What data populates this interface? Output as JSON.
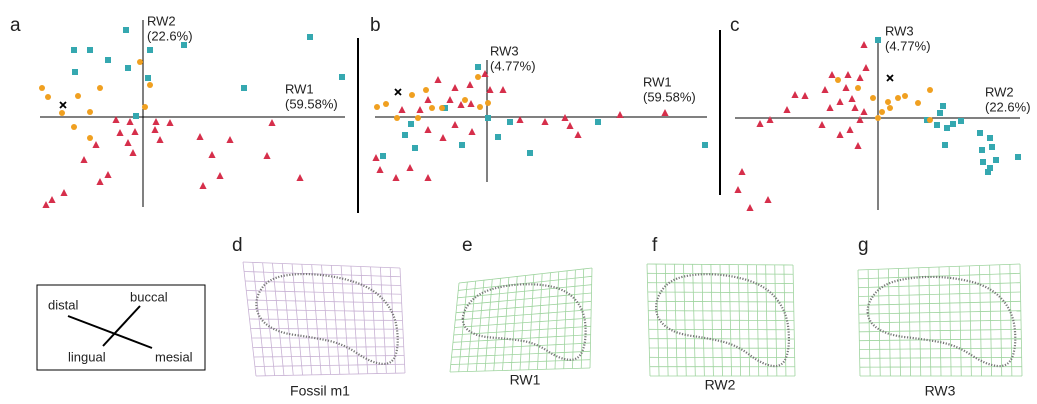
{
  "chart_data": [
    {
      "type": "scatter",
      "panel": "a",
      "x_label": [
        "RW1",
        "(59.58%)"
      ],
      "y_label": [
        "RW2",
        "(22.6%)"
      ],
      "xlim": [
        -103,
        202
      ],
      "ylim": [
        -90,
        97
      ],
      "series": [
        {
          "color": "#35a8b0",
          "marker": "square",
          "x": [
            -17,
            -69,
            -53,
            -35,
            7,
            41,
            -68,
            -15,
            5,
            101,
            167,
            199,
            -7
          ],
          "values": [
            87,
            67,
            67,
            57,
            67,
            72,
            45,
            49,
            39,
            29,
            80,
            40,
            1
          ]
        },
        {
          "color": "#f0a020",
          "marker": "circle",
          "x": [
            -101,
            -95,
            -65,
            -43,
            -81,
            -53,
            2,
            7,
            -69,
            -53,
            -3
          ],
          "values": [
            29,
            20,
            21,
            29,
            4,
            5,
            10,
            32,
            -10,
            -21,
            55
          ]
        },
        {
          "color": "#d62f4b",
          "marker": "triangle",
          "x": [
            -27,
            -13,
            13,
            27,
            -23,
            -15,
            -8,
            -10,
            12,
            17,
            57,
            87,
            129,
            124,
            69,
            77,
            60,
            157,
            -47,
            -59,
            -35,
            -79,
            -97,
            -91,
            -43
          ],
          "values": [
            -3,
            -5,
            -5,
            -6,
            -16,
            -26,
            -15,
            -36,
            -13,
            -23,
            -20,
            -23,
            -6,
            -39,
            -38,
            -59,
            -69,
            -61,
            -28,
            -43,
            -58,
            -76,
            -88,
            -83,
            -65
          ]
        },
        {
          "color": "#000000",
          "marker": "cross",
          "x": [
            -80
          ],
          "values": [
            12
          ]
        }
      ]
    },
    {
      "type": "scatter",
      "panel": "b",
      "x_label": [
        "RW1",
        "(59.58%)"
      ],
      "y_label": [
        "RW3",
        "(4.77%)"
      ],
      "xlim": [
        -112,
        220
      ],
      "ylim": [
        -65,
        57
      ],
      "series": [
        {
          "color": "#35a8b0",
          "marker": "square",
          "x": [
            -9,
            -42,
            -76,
            -82,
            1,
            23,
            11,
            -25,
            43,
            111,
            218,
            -104,
            -72
          ],
          "values": [
            50,
            9,
            -7,
            -18,
            -1,
            -5,
            -20,
            -28,
            -36,
            -5,
            -28,
            -39,
            -31
          ]
        },
        {
          "color": "#f0a020",
          "marker": "circle",
          "x": [
            -110,
            -101,
            -75,
            -61,
            -55,
            -69,
            -45,
            -7,
            1,
            -9,
            -22,
            -90
          ],
          "values": [
            10,
            13,
            22,
            27,
            9,
            -1,
            9,
            10,
            14,
            40,
            17,
            -1
          ]
        },
        {
          "color": "#d62f4b",
          "marker": "triangle",
          "x": [
            -2,
            -17,
            3,
            16,
            -32,
            -26,
            -16,
            -37,
            -49,
            -59,
            -67,
            -85,
            -32,
            -15,
            -44,
            33,
            58,
            78,
            83,
            91,
            133,
            178,
            -59,
            -107,
            -91,
            -59,
            -77,
            -111
          ],
          "values": [
            43,
            32,
            27,
            27,
            29,
            12,
            13,
            17,
            37,
            17,
            7,
            7,
            -8,
            -15,
            -21,
            -3,
            -5,
            -1,
            -9,
            -18,
            2,
            4,
            -13,
            -53,
            -61,
            -61,
            -51,
            -41
          ]
        },
        {
          "color": "#000000",
          "marker": "cross",
          "x": [
            -89
          ],
          "values": [
            25
          ]
        }
      ]
    },
    {
      "type": "scatter",
      "panel": "c",
      "x_label": [
        "RW2",
        "(22.6%)"
      ],
      "y_label": [
        "RW3",
        "(4.77%)"
      ],
      "xlim": [
        -143,
        142
      ],
      "ylim": [
        -92,
        78
      ],
      "series": [
        {
          "color": "#35a8b0",
          "marker": "square",
          "x": [
            0,
            65,
            62,
            49,
            59,
            69,
            75,
            83,
            102,
            112,
            114,
            104,
            118,
            112,
            105,
            140,
            110,
            67
          ],
          "values": [
            78,
            12,
            5,
            -2,
            -7,
            -10,
            -6,
            -3,
            -15,
            -20,
            -29,
            -32,
            -42,
            -50,
            -44,
            -39,
            -54,
            -27
          ]
        },
        {
          "color": "#f0a020",
          "marker": "circle",
          "x": [
            -40,
            -20,
            -5,
            27,
            10,
            40,
            12,
            4,
            0,
            52,
            52,
            20
          ],
          "values": [
            38,
            30,
            20,
            22,
            16,
            15,
            10,
            6,
            0,
            28,
            -2,
            20
          ]
        },
        {
          "color": "#d62f4b",
          "marker": "triangle",
          "x": [
            -14,
            -46,
            -30,
            -18,
            -12,
            -32,
            -26,
            -23,
            -14,
            -38,
            -53,
            -73,
            -83,
            -108,
            -118,
            -91,
            -56,
            -18,
            -28,
            -38,
            -20,
            -136,
            -140,
            -128,
            -110,
            -48
          ],
          "values": [
            73,
            43,
            43,
            40,
            50,
            30,
            19,
            10,
            6,
            16,
            28,
            22,
            23,
            -2,
            -6,
            8,
            -7,
            -2,
            -12,
            -17,
            -28,
            -54,
            -72,
            -90,
            -82,
            10
          ]
        },
        {
          "color": "#000000",
          "marker": "cross",
          "x": [
            12
          ],
          "values": [
            40
          ]
        }
      ]
    }
  ],
  "shapes": [
    {
      "panel": "d",
      "label": "Fossil m1"
    },
    {
      "panel": "e",
      "label": "RW1"
    },
    {
      "panel": "f",
      "label": "RW2"
    },
    {
      "panel": "g",
      "label": "RW3"
    }
  ],
  "orientation": {
    "distal": "distal",
    "buccal": "buccal",
    "lingual": "lingual",
    "mesial": "mesial"
  }
}
